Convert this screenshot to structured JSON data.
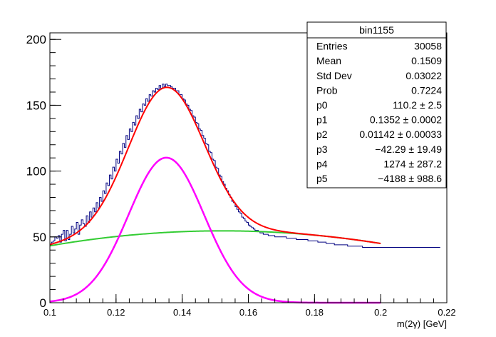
{
  "chart_data": {
    "type": "histogram-fit",
    "xlabel": "m(2γ) [GeV]",
    "xlim": [
      0.1,
      0.22
    ],
    "ylim": [
      0,
      205
    ],
    "x_ticks": [
      "0.1",
      "0.12",
      "0.14",
      "0.16",
      "0.18",
      "0.2",
      "0.22"
    ],
    "y_ticks": [
      "0",
      "50",
      "100",
      "150",
      "200"
    ],
    "stats_box": {
      "title": "bin1155",
      "rows": [
        {
          "label": "Entries",
          "value": "30058"
        },
        {
          "label": "Mean",
          "value": "0.1509"
        },
        {
          "label": "Std Dev",
          "value": "0.03022"
        },
        {
          "label": "Prob",
          "value": "0.7224"
        },
        {
          "label": "p0",
          "value": "110.2 ± 2.5"
        },
        {
          "label": "p1",
          "value": "0.1352 ± 0.0002"
        },
        {
          "label": "p2",
          "value": "0.01142 ± 0.00033"
        },
        {
          "label": "p3",
          "value": "−42.29 ± 19.49"
        },
        {
          "label": "p4",
          "value": "1274 ± 287.2"
        },
        {
          "label": "p5",
          "value": "−4188 ± 988.6"
        }
      ]
    },
    "fit_params": {
      "p0": 110.2,
      "p1": 0.1352,
      "p2": 0.01142,
      "p3": -42.29,
      "p4": 1274,
      "p5": -4188
    },
    "histogram": {
      "bin_width": 0.0005,
      "x_start": 0.1,
      "values": [
        44,
        46,
        47,
        50,
        49,
        51,
        46,
        52,
        55,
        47,
        55,
        48,
        52,
        58,
        53,
        56,
        61,
        52,
        59,
        63,
        60,
        58,
        66,
        61,
        69,
        65,
        72,
        69,
        76,
        72,
        80,
        77,
        85,
        83,
        91,
        89,
        97,
        94,
        103,
        100,
        109,
        106,
        115,
        113,
        121,
        118,
        127,
        124,
        132,
        130,
        137,
        135,
        142,
        140,
        147,
        145,
        151,
        150,
        155,
        153,
        158,
        157,
        161,
        160,
        163,
        162,
        165,
        163,
        166,
        164,
        166,
        165,
        165,
        164,
        163,
        163,
        161,
        161,
        158,
        158,
        155,
        154,
        151,
        150,
        147,
        146,
        142,
        141,
        137,
        136,
        132,
        131,
        127,
        125,
        121,
        120,
        115,
        114,
        109,
        108,
        103,
        102,
        97,
        96,
        92,
        90,
        87,
        85,
        82,
        80,
        77,
        76,
        73,
        71,
        69,
        68,
        65,
        64,
        62,
        61,
        59,
        58,
        57,
        56,
        55,
        55,
        54,
        53,
        53,
        52,
        52,
        52,
        51,
        51,
        51,
        51,
        50,
        50,
        50,
        50,
        50,
        50,
        50,
        49,
        49,
        49,
        49,
        49,
        49,
        48,
        48,
        48,
        48,
        48,
        48,
        48,
        47,
        47,
        47,
        47,
        47,
        47,
        46,
        46,
        46,
        46,
        46,
        45,
        45,
        45,
        45,
        45,
        44,
        44,
        44,
        44,
        44,
        44,
        44,
        44,
        43,
        43,
        43,
        43,
        43,
        43,
        43,
        43,
        43,
        42,
        42,
        42,
        42,
        42,
        42,
        42,
        42,
        42,
        42,
        42,
        42,
        42,
        42,
        42,
        42,
        42,
        42,
        42,
        42,
        42,
        42,
        42,
        42,
        42,
        42,
        42,
        42,
        42,
        42,
        42,
        42,
        42,
        42,
        42,
        42,
        42,
        42,
        42,
        42,
        42,
        42,
        42,
        42,
        42,
        42,
        42
      ]
    },
    "series": [
      {
        "color": "#000080"
      },
      {
        "color": "#ff0000"
      },
      {
        "color": "#ff00ff"
      },
      {
        "color": "#33cc33"
      }
    ]
  }
}
